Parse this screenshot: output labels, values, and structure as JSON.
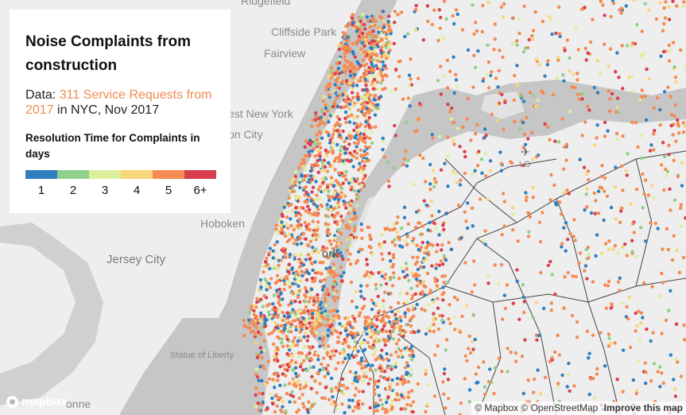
{
  "map": {
    "place_labels": [
      {
        "text": "Ridgefield",
        "cls": "place"
      },
      {
        "text": "Cliffside Park",
        "cls": "place"
      },
      {
        "text": "Fairview",
        "cls": "place"
      },
      {
        "text": "est New York",
        "cls": "place"
      },
      {
        "text": "on City",
        "cls": "place"
      },
      {
        "text": "Hoboken",
        "cls": "place"
      },
      {
        "text": "Jersey City",
        "cls": "place big"
      },
      {
        "text": "Statue of Liberty",
        "cls": "place"
      },
      {
        "text": "ork",
        "cls": "place big"
      },
      {
        "text": "onne",
        "cls": "place"
      },
      {
        "text": "LG",
        "cls": "place"
      }
    ],
    "dot_colors": [
      "#2f7fc0",
      "#8fd18a",
      "#dcef9a",
      "#f9d67a",
      "#f58a52",
      "#d8404f"
    ]
  },
  "panel": {
    "title": "Noise Complaints from construction",
    "data_prefix": "Data: ",
    "data_link": "311 Service Requests from 2017",
    "data_suffix": " in NYC, Nov 2017",
    "legend_title": "Resolution Time for Complaints in days",
    "legend": [
      {
        "label": "1",
        "color": "#2f7fc0"
      },
      {
        "label": "2",
        "color": "#8fd18a"
      },
      {
        "label": "3",
        "color": "#dcef9a"
      },
      {
        "label": "4",
        "color": "#f9d67a"
      },
      {
        "label": "5",
        "color": "#f58a52"
      },
      {
        "label": "6+",
        "color": "#d8404f"
      }
    ]
  },
  "logo": {
    "text": "mapbox"
  },
  "attribution": {
    "mapbox": "© Mapbox",
    "osm": "© OpenStreetMap",
    "improve": "Improve this map"
  }
}
